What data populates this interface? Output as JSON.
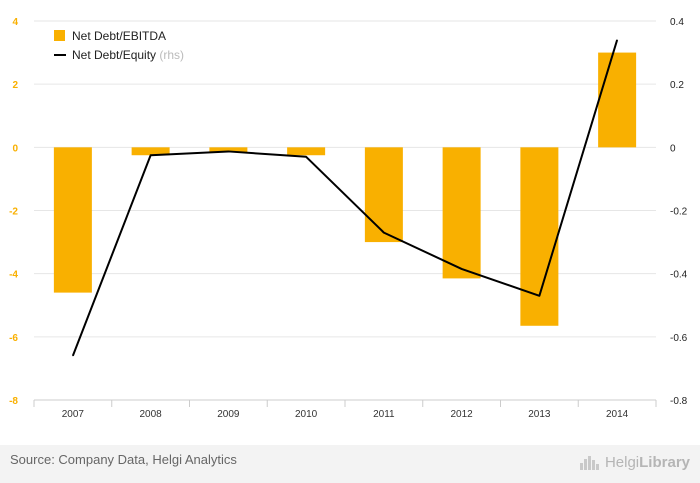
{
  "chart_data": {
    "type": "bar+line",
    "categories": [
      "2007",
      "2008",
      "2009",
      "2010",
      "2011",
      "2012",
      "2013",
      "2014"
    ],
    "series": [
      {
        "name": "Net Debt/EBITDA",
        "type": "bar",
        "axis": "left",
        "color": "#f9b000",
        "values": [
          -4.6,
          -0.25,
          -0.15,
          -0.25,
          -3.0,
          -4.15,
          -5.65,
          3.0
        ]
      },
      {
        "name": "Net Debt/Equity",
        "type": "line",
        "axis": "right",
        "color": "#000000",
        "values": [
          -0.66,
          -0.025,
          -0.013,
          -0.03,
          -0.27,
          -0.385,
          -0.47,
          0.34
        ]
      }
    ],
    "legend_note": "(rhs)",
    "y_left": {
      "min": -8,
      "max": 4,
      "ticks": [
        "4",
        "2",
        "0",
        "-2",
        "-4",
        "-6",
        "-8"
      ],
      "color": "#f9b000"
    },
    "y_right": {
      "min": -0.8,
      "max": 0.4,
      "ticks": [
        "0.4",
        "0.2",
        "0",
        "-0.2",
        "-0.4",
        "-0.6",
        "-0.8"
      ]
    },
    "grid": true,
    "legend_position": "top-left"
  },
  "footer": {
    "source": "Source: Company Data, Helgi Analytics",
    "logo_text_light": "Helgi",
    "logo_text_bold": "Library"
  }
}
